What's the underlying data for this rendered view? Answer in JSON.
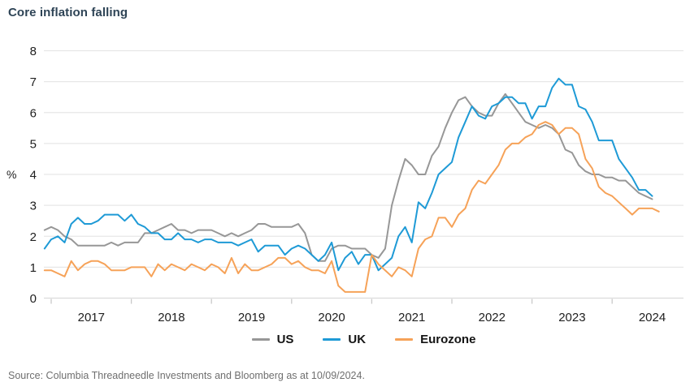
{
  "header": {
    "title": "Core inflation falling"
  },
  "chart_data": {
    "type": "line",
    "title": "Core inflation falling",
    "xlabel": "",
    "ylabel": "%",
    "ylim": [
      0,
      8
    ],
    "yticks": [
      0,
      1,
      2,
      3,
      4,
      5,
      6,
      7,
      8
    ],
    "x_tick_years": [
      2017,
      2018,
      2019,
      2020,
      2021,
      2022,
      2023,
      2024
    ],
    "frequency": "monthly",
    "x_start": "2016-12",
    "grid": "horizontal",
    "legend_position": "bottom",
    "series": [
      {
        "name": "US",
        "color": "#979797",
        "values": [
          2.2,
          2.3,
          2.2,
          2.0,
          1.9,
          1.7,
          1.7,
          1.7,
          1.7,
          1.7,
          1.8,
          1.7,
          1.8,
          1.8,
          1.8,
          2.1,
          2.1,
          2.2,
          2.3,
          2.4,
          2.2,
          2.2,
          2.1,
          2.2,
          2.2,
          2.2,
          2.1,
          2.0,
          2.1,
          2.0,
          2.1,
          2.2,
          2.4,
          2.4,
          2.3,
          2.3,
          2.3,
          2.3,
          2.4,
          2.1,
          1.4,
          1.2,
          1.2,
          1.6,
          1.7,
          1.7,
          1.6,
          1.6,
          1.6,
          1.4,
          1.3,
          1.6,
          3.0,
          3.8,
          4.5,
          4.3,
          4.0,
          4.0,
          4.6,
          4.9,
          5.5,
          6.0,
          6.4,
          6.5,
          6.2,
          6.0,
          5.9,
          5.9,
          6.3,
          6.6,
          6.3,
          6.0,
          5.7,
          5.6,
          5.5,
          5.6,
          5.5,
          5.3,
          4.8,
          4.7,
          4.3,
          4.1,
          4.0,
          4.0,
          3.9,
          3.9,
          3.8,
          3.8,
          3.6,
          3.4,
          3.3,
          3.2
        ]
      },
      {
        "name": "UK",
        "color": "#1e9ad6",
        "values": [
          1.6,
          1.9,
          2.0,
          1.8,
          2.4,
          2.6,
          2.4,
          2.4,
          2.5,
          2.7,
          2.7,
          2.7,
          2.5,
          2.7,
          2.4,
          2.3,
          2.1,
          2.1,
          1.9,
          1.9,
          2.1,
          1.9,
          1.9,
          1.8,
          1.9,
          1.9,
          1.8,
          1.8,
          1.8,
          1.7,
          1.8,
          1.9,
          1.5,
          1.7,
          1.7,
          1.7,
          1.4,
          1.6,
          1.7,
          1.6,
          1.4,
          1.2,
          1.4,
          1.8,
          0.9,
          1.3,
          1.5,
          1.1,
          1.4,
          1.4,
          0.9,
          1.1,
          1.3,
          2.0,
          2.3,
          1.8,
          3.1,
          2.9,
          3.4,
          4.0,
          4.2,
          4.4,
          5.2,
          5.7,
          6.2,
          5.9,
          5.8,
          6.2,
          6.3,
          6.5,
          6.5,
          6.3,
          6.3,
          5.8,
          6.2,
          6.2,
          6.8,
          7.1,
          6.9,
          6.9,
          6.2,
          6.1,
          5.7,
          5.1,
          5.1,
          5.1,
          4.5,
          4.2,
          3.9,
          3.5,
          3.5,
          3.3
        ]
      },
      {
        "name": "Eurozone",
        "color": "#f6a258",
        "values": [
          0.9,
          0.9,
          0.8,
          0.7,
          1.2,
          0.9,
          1.1,
          1.2,
          1.2,
          1.1,
          0.9,
          0.9,
          0.9,
          1.0,
          1.0,
          1.0,
          0.7,
          1.1,
          0.9,
          1.1,
          1.0,
          0.9,
          1.1,
          1.0,
          0.9,
          1.1,
          1.0,
          0.8,
          1.3,
          0.8,
          1.1,
          0.9,
          0.9,
          1.0,
          1.1,
          1.3,
          1.3,
          1.1,
          1.2,
          1.0,
          0.9,
          0.9,
          0.8,
          1.2,
          0.4,
          0.2,
          0.2,
          0.2,
          0.2,
          1.4,
          1.1,
          0.9,
          0.7,
          1.0,
          0.9,
          0.7,
          1.6,
          1.9,
          2.0,
          2.6,
          2.6,
          2.3,
          2.7,
          2.9,
          3.5,
          3.8,
          3.7,
          4.0,
          4.3,
          4.8,
          5.0,
          5.0,
          5.2,
          5.3,
          5.6,
          5.7,
          5.6,
          5.3,
          5.5,
          5.5,
          5.3,
          4.5,
          4.2,
          3.6,
          3.4,
          3.3,
          3.1,
          2.9,
          2.7,
          2.9,
          2.9,
          2.9,
          2.8
        ]
      }
    ]
  },
  "footer": {
    "source": "Source: Columbia Threadneedle Investments and Bloomberg as at 10/09/2024."
  },
  "colors": {
    "title_text": "#2e4456",
    "axis_text": "#202020",
    "grid_line": "#e7e7e7",
    "axis_line": "#dcdcdc",
    "tick_mark": "#c9c9c9",
    "source_text": "#6f6f6f"
  }
}
